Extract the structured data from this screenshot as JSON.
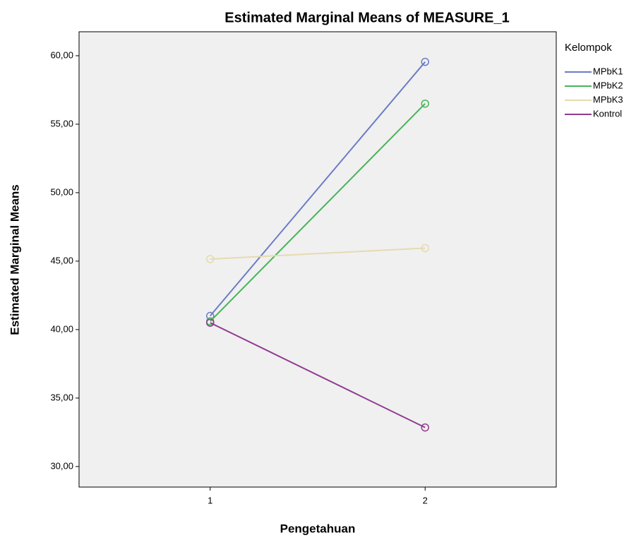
{
  "chart_data": {
    "type": "line",
    "title": "Estimated Marginal Means of MEASURE_1",
    "x_label": "Pengetahuan",
    "y_label": "Estimated Marginal Means",
    "legend_title": "Kelompok",
    "x": [
      1,
      2
    ],
    "xlim": [
      0.39,
      2.61
    ],
    "xticks": [
      1,
      2
    ],
    "ylim": [
      28.5,
      61.75
    ],
    "yticks": [
      {
        "value": 30,
        "label": "30,00"
      },
      {
        "value": 35,
        "label": "35,00"
      },
      {
        "value": 40,
        "label": "40,00"
      },
      {
        "value": 45,
        "label": "45,00"
      },
      {
        "value": 50,
        "label": "50,00"
      },
      {
        "value": 55,
        "label": "55,00"
      },
      {
        "value": 60,
        "label": "60,00"
      }
    ],
    "series": [
      {
        "name": "MPbK1",
        "color": "#6a7cc8",
        "values": [
          41.0,
          59.55
        ]
      },
      {
        "name": "MPbK2",
        "color": "#48b45a",
        "values": [
          40.6,
          56.5
        ]
      },
      {
        "name": "MPbK3",
        "color": "#e6dab0",
        "values": [
          45.15,
          45.95
        ]
      },
      {
        "name": "Kontrol",
        "color": "#903c90",
        "values": [
          40.5,
          32.85
        ]
      }
    ],
    "legend_position": "right"
  }
}
